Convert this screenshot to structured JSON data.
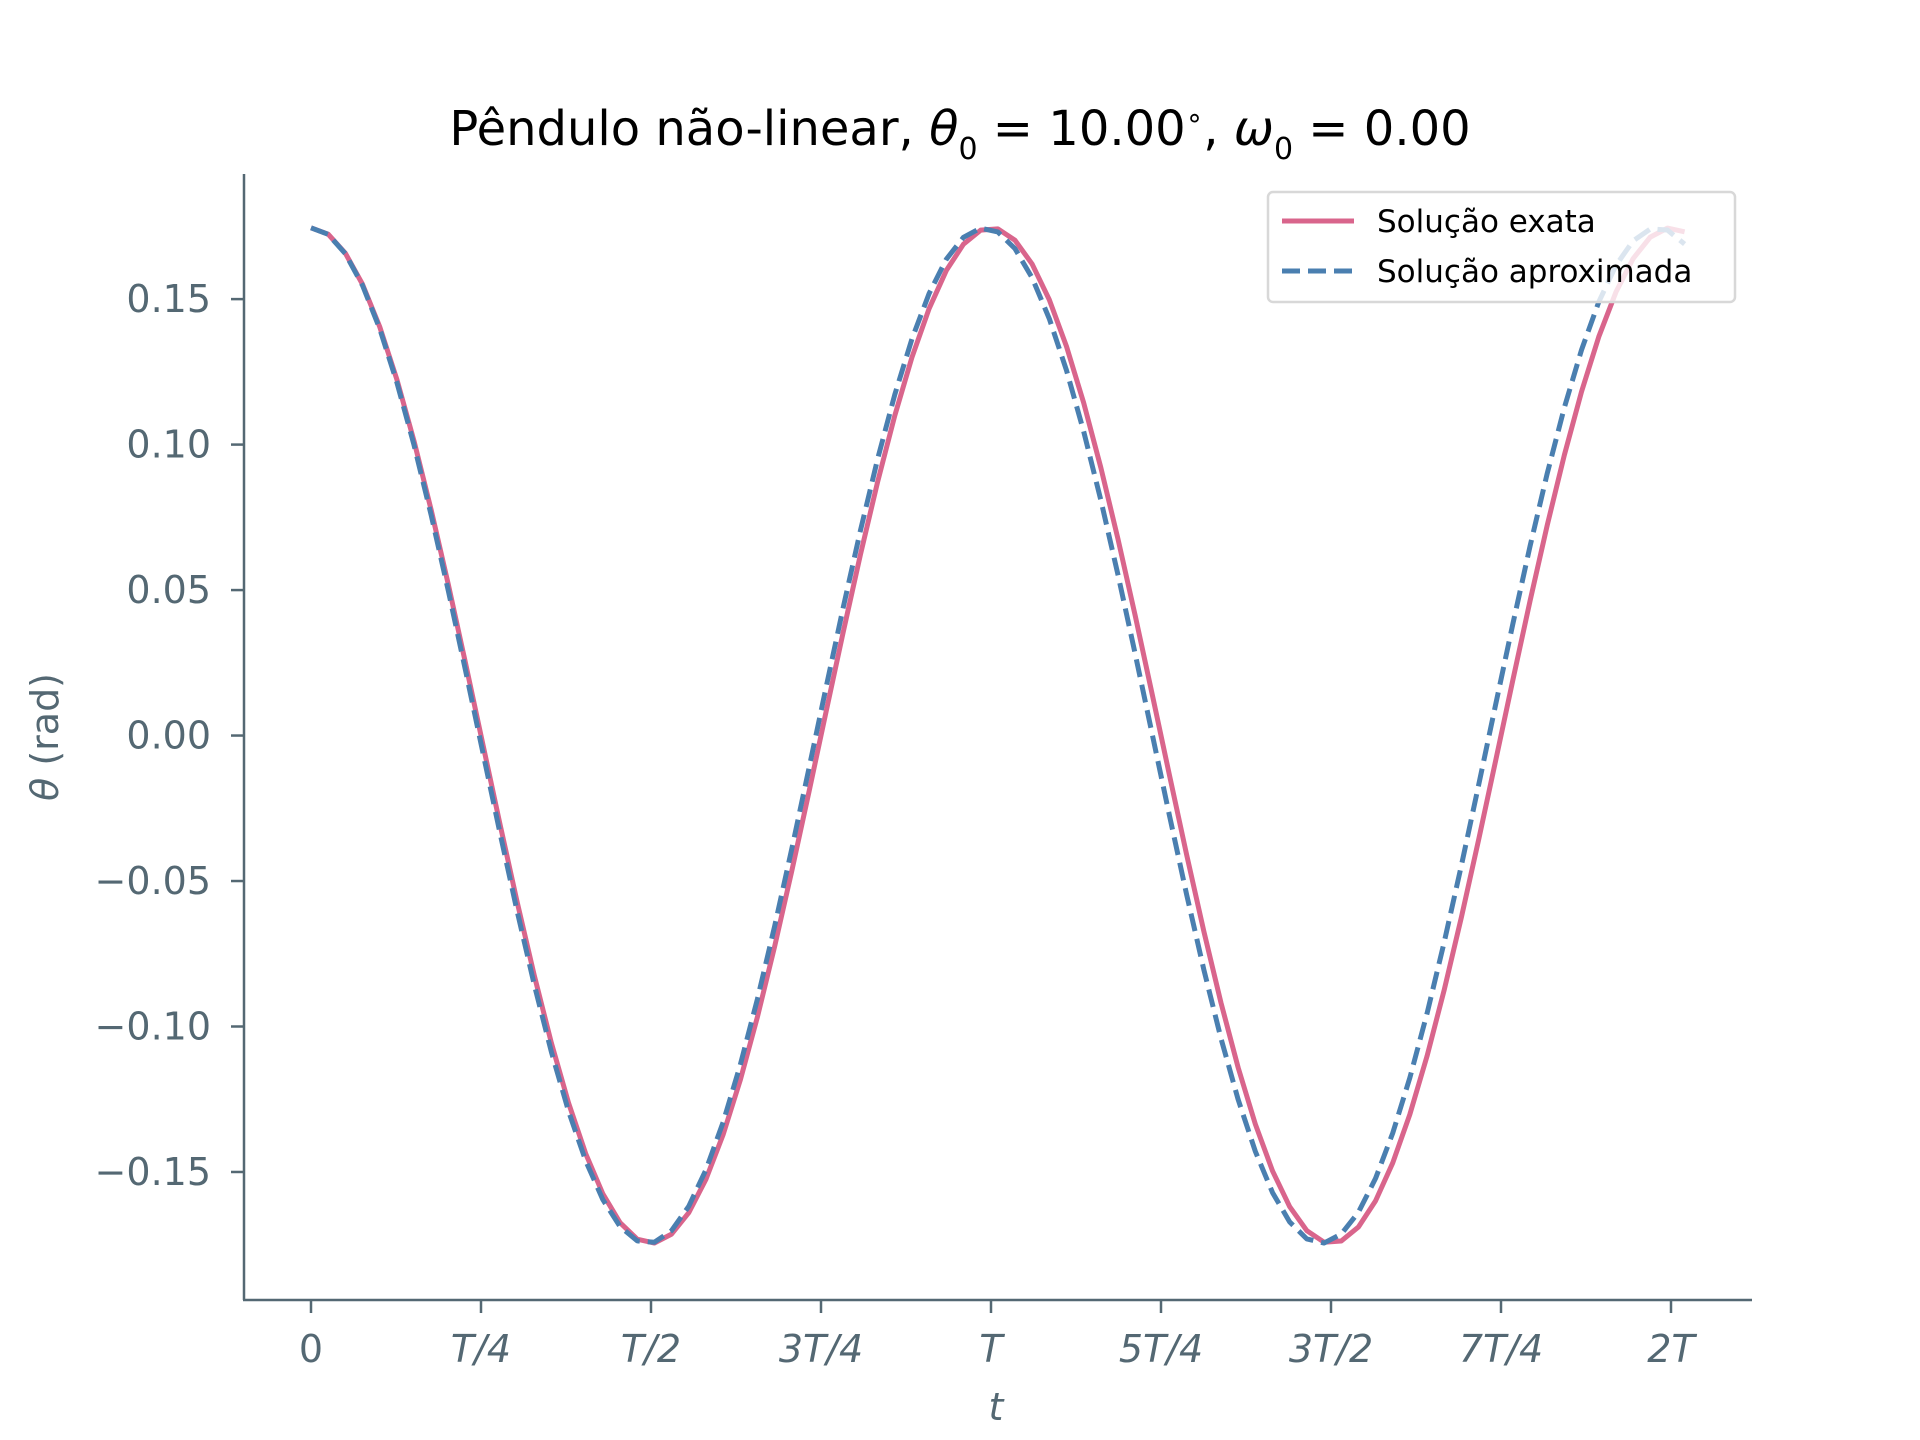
{
  "chart_data": {
    "type": "line",
    "title": {
      "prefix": "Pêndulo não-linear, ",
      "theta0_value": "10.00",
      "omega0_value": "0.00"
    },
    "xlabel": "t",
    "ylabel_symbol": "θ",
    "ylabel_unit": " (rad)",
    "x_period": "T",
    "x_range_periods": [
      -0.2,
      2.25
    ],
    "ylim": [
      -0.194,
      0.193
    ],
    "x_ticks": [
      {
        "value": 0,
        "label": "0",
        "italic": false
      },
      {
        "value": 0.25,
        "label": "T/4",
        "italic": true
      },
      {
        "value": 0.5,
        "label": "T/2",
        "italic": true
      },
      {
        "value": 0.75,
        "label": "3T/4",
        "italic": true
      },
      {
        "value": 1.0,
        "label": "T",
        "italic": true
      },
      {
        "value": 1.25,
        "label": "5T/4",
        "italic": true
      },
      {
        "value": 1.5,
        "label": "3T/2",
        "italic": true
      },
      {
        "value": 1.75,
        "label": "7T/4",
        "italic": true
      },
      {
        "value": 2.0,
        "label": "2T",
        "italic": true
      }
    ],
    "y_ticks": [
      {
        "value": 0.15,
        "label": "0.15"
      },
      {
        "value": 0.1,
        "label": "0.10"
      },
      {
        "value": 0.05,
        "label": "0.05"
      },
      {
        "value": 0.0,
        "label": "0.00"
      },
      {
        "value": -0.05,
        "label": "−0.05"
      },
      {
        "value": -0.1,
        "label": "−0.10"
      },
      {
        "value": -0.15,
        "label": "−0.15"
      }
    ],
    "series": [
      {
        "name": "Solução exata",
        "color": "#d9658c",
        "style": "solid",
        "amplitude": 0.1745,
        "period": 1.0,
        "x_start": 0.0,
        "x_end": 2.02,
        "samples": 80
      },
      {
        "name": "Solução aproximada",
        "color": "#4a7fb0",
        "style": "dashed",
        "amplitude": 0.1745,
        "period": 0.99,
        "x_start": 0.0,
        "x_end": 2.02,
        "samples": 80
      }
    ],
    "legend": {
      "placement": "upper-right"
    },
    "grid": false,
    "colors": {
      "axis": "#546873",
      "text": "#546873",
      "title": "#000000"
    }
  }
}
